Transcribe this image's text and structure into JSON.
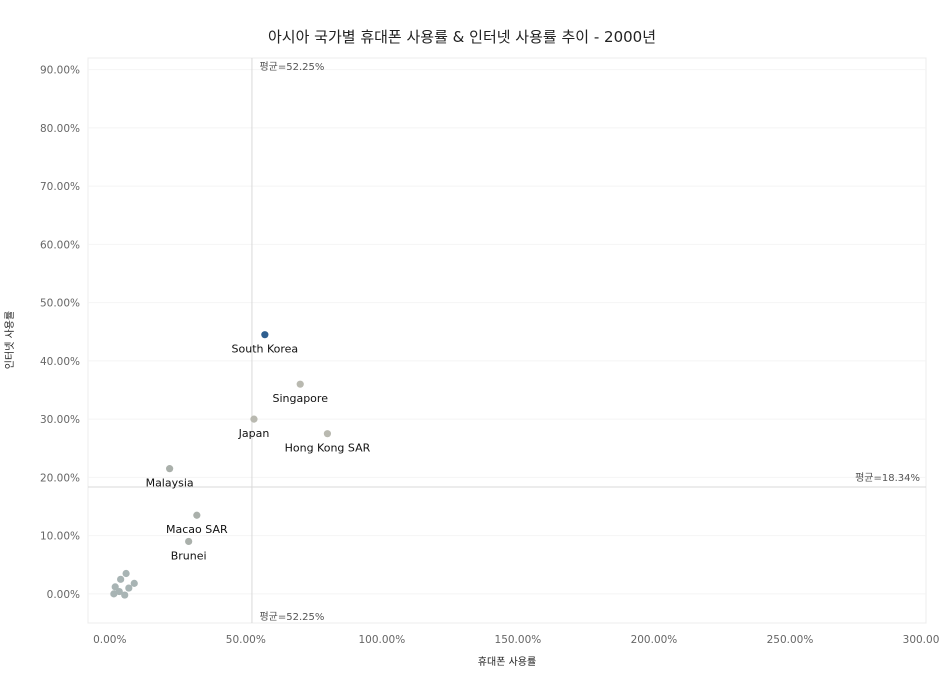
{
  "chart_data": {
    "type": "scatter",
    "title": "아시아 국가별 휴대폰 사용률 & 인터넷 사용률 추이 - 2000년",
    "xlabel": "휴대폰 사용률",
    "ylabel": "인터넷 사용률",
    "xlim": [
      -0.08,
      3.0
    ],
    "ylim": [
      -0.05,
      0.92
    ],
    "x_ticks": [
      "0.00%",
      "50.00%",
      "100.00%",
      "150.00%",
      "200.00%",
      "250.00%",
      "300.00%"
    ],
    "y_ticks": [
      "0.00%",
      "10.00%",
      "20.00%",
      "30.00%",
      "40.00%",
      "50.00%",
      "60.00%",
      "70.00%",
      "80.00%",
      "90.00%"
    ],
    "reference_lines": [
      {
        "axis": "x",
        "value": 0.5225,
        "label": "평균=52.25%"
      },
      {
        "axis": "y",
        "value": 0.1834,
        "label": "평균=18.34%"
      }
    ],
    "points": [
      {
        "label": "South Korea",
        "x": 0.57,
        "y": 0.445,
        "color": "#2f5f8f"
      },
      {
        "label": "Singapore",
        "x": 0.7,
        "y": 0.36,
        "color": "#b9b9b0"
      },
      {
        "label": "Japan",
        "x": 0.53,
        "y": 0.3,
        "color": "#b9b9b0"
      },
      {
        "label": "Hong Kong SAR",
        "x": 0.8,
        "y": 0.275,
        "color": "#b9b9b0"
      },
      {
        "label": "Malaysia",
        "x": 0.22,
        "y": 0.215,
        "color": "#aab0ab"
      },
      {
        "label": "Macao SAR",
        "x": 0.32,
        "y": 0.135,
        "color": "#aab0ab"
      },
      {
        "label": "Brunei",
        "x": 0.29,
        "y": 0.09,
        "color": "#aab0ab"
      },
      {
        "label": "",
        "x": 0.06,
        "y": 0.035,
        "color": "#a8b4b4"
      },
      {
        "label": "",
        "x": 0.04,
        "y": 0.025,
        "color": "#a8b4b4"
      },
      {
        "label": "",
        "x": 0.09,
        "y": 0.018,
        "color": "#a8b4b4"
      },
      {
        "label": "",
        "x": 0.02,
        "y": 0.012,
        "color": "#a8b4b4"
      },
      {
        "label": "",
        "x": 0.07,
        "y": 0.01,
        "color": "#a8b4b4"
      },
      {
        "label": "",
        "x": 0.035,
        "y": 0.004,
        "color": "#a8b4b4"
      },
      {
        "label": "",
        "x": 0.015,
        "y": 0.0,
        "color": "#a8b4b4"
      },
      {
        "label": "",
        "x": 0.055,
        "y": -0.002,
        "color": "#a8b4b4"
      }
    ]
  }
}
